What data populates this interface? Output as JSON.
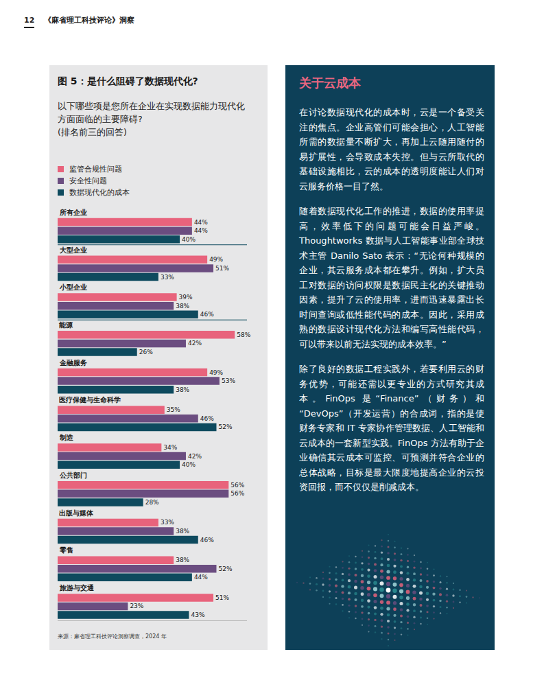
{
  "header": {
    "page_number": "12",
    "publication": "《麻省理工科技评论》洞察"
  },
  "chart_data": {
    "type": "bar",
    "orientation": "horizontal",
    "title": "图 5：是什么阻碍了数据现代化?",
    "subtitle": [
      "以下哪些项是您所在企业在实现数据能力现代化方面面临的主要障碍?",
      "(排名前三的回答)"
    ],
    "source": "来源：麻省理工科技评论洞察调查，2024 年",
    "categories": [
      "所有企业",
      "大型企业",
      "小型企业",
      "能源",
      "金融服务",
      "医疗保健与生命科学",
      "制造",
      "公共部门",
      "出版与媒体",
      "零售",
      "旅游与交通"
    ],
    "series": [
      {
        "name": "监管合规性问题",
        "color": "#e8637c",
        "values": [
          44,
          49,
          39,
          58,
          49,
          35,
          34,
          56,
          33,
          38,
          51
        ],
        "value_labels": [
          "44%",
          "49%",
          "39%",
          "58%",
          "49%",
          "35%",
          "34%",
          "56%",
          "33%",
          "38%",
          "51%"
        ]
      },
      {
        "name": "安全性问题",
        "color": "#6b4d80",
        "values": [
          44,
          51,
          38,
          42,
          53,
          46,
          42,
          56,
          38,
          52,
          23
        ],
        "value_labels": [
          "44%",
          "51%",
          "38%",
          "42%",
          "53%",
          "46%",
          "42%",
          "56%",
          "38%",
          "52%",
          "23%"
        ]
      },
      {
        "name": "数据现代化的成本",
        "color": "#0e4a5e",
        "values": [
          40,
          33,
          46,
          26,
          38,
          52,
          40,
          28,
          46,
          44,
          43
        ],
        "value_labels": [
          "40%",
          "33%",
          "46%",
          "26%",
          "38%",
          "52%",
          "40%",
          "28%",
          "46%",
          "44%",
          "43%"
        ]
      }
    ],
    "xlim": [
      0,
      62
    ],
    "data_labels": true,
    "tick_labels": false,
    "grid": false,
    "legend": "top left"
  },
  "sidebar": {
    "title": "关于云成本",
    "paragraphs": [
      "在讨论数据现代化的成本时，云是一个备受关注的焦点。企业高管们可能会担心，人工智能所需的数据量不断扩大，再加上云随用随付的易扩展性，会导致成本失控。但与云所取代的基础设施相比，云的成本的透明度能让人们对云服务价格一目了然。",
      "随着数据现代化工作的推进，数据的使用率提高，效率低下的问题可能会日益严峻。Thoughtworks 数据与人工智能事业部全球技术主管 Danilo Sato 表示：“无论何种规模的企业，其云服务成本都在攀升。例如，扩大员工对数据的访问权限是数据民主化的关键推动因素，提升了云的使用率，进而迅速暴露出长时间查询或低性能代码的成本。因此，采用成熟的数据设计现代化方法和编写高性能代码，可以带来以前无法实现的成本效率。”",
      "除了良好的数据工程实践外，若要利用云的财务优势，可能还需以更专业的方式研究其成本。FinOps 是“Finance”（财务）和“DevOps”（开发运营）的合成词，指的是使财务专家和 IT 专家协作管理数据、人工智能和云成本的一套新型实践。FinOps 方法有助于企业确信其云成本可监控、可预测并符合企业的总体战略，目标是最大限度地提高企业的云投资回报，而不仅仅是削减成本。"
    ]
  }
}
